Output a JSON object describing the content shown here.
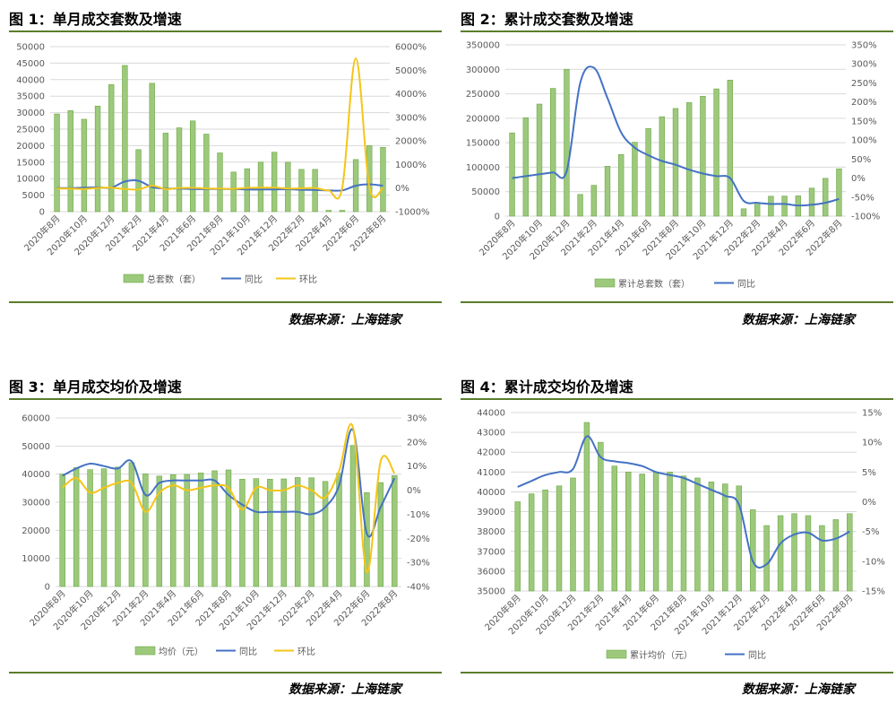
{
  "charts": [
    {
      "id": "c1",
      "title": "图 1：单月成交套数及增速",
      "source": "数据来源：上海链家",
      "chart_data": {
        "type": "bar",
        "categories": [
          "2020年8月",
          "2020年9月",
          "2020年10月",
          "2020年11月",
          "2020年12月",
          "2021年1月",
          "2021年2月",
          "2021年3月",
          "2021年4月",
          "2021年5月",
          "2021年6月",
          "2021年7月",
          "2021年8月",
          "2021年9月",
          "2021年10月",
          "2021年11月",
          "2021年12月",
          "2022年1月",
          "2022年2月",
          "2022年3月",
          "2022年4月",
          "2022年5月",
          "2022年6月",
          "2022年7月",
          "2022年8月"
        ],
        "x_tick_labels": [
          "2020年8月",
          "2020年10月",
          "2020年12月",
          "2021年2月",
          "2021年4月",
          "2021年6月",
          "2021年8月",
          "2021年10月",
          "2021年12月",
          "2022年2月",
          "2022年4月",
          "2022年6月",
          "2022年8月"
        ],
        "y_left": {
          "min": 0,
          "max": 50000,
          "ticks": [
            "0",
            "5000",
            "10000",
            "15000",
            "20000",
            "25000",
            "30000",
            "35000",
            "40000",
            "45000",
            "50000"
          ]
        },
        "y_right": {
          "min": -1000,
          "max": 6000,
          "ticks": [
            "-1000%",
            "0%",
            "1000%",
            "2000%",
            "3000%",
            "4000%",
            "5000%",
            "6000%"
          ]
        },
        "series": [
          {
            "name": "总套数（套）",
            "kind": "bar",
            "axis": "left",
            "color": "#9cc97b",
            "values": [
              29600,
              30600,
              28000,
              32000,
              38500,
              44300,
              18800,
              38900,
              23800,
              25400,
              27500,
              23500,
              17800,
              12000,
              13000,
              15000,
              18000,
              15000,
              12800,
              12800,
              400,
              400,
              15800,
              20000,
              19500
            ]
          },
          {
            "name": "同比",
            "kind": "line",
            "axis": "right",
            "color": "#4472c4",
            "values": [
              0,
              0,
              20,
              30,
              20,
              280,
              310,
              40,
              -20,
              -20,
              -40,
              -40,
              -40,
              -40,
              -60,
              -60,
              -60,
              -50,
              -70,
              -80,
              -100,
              -100,
              100,
              160,
              100
            ]
          },
          {
            "name": "环比",
            "kind": "line",
            "axis": "right",
            "color": "#f5c518",
            "values": [
              -20,
              -20,
              -40,
              10,
              15,
              -40,
              -55,
              100,
              -40,
              5,
              8,
              -15,
              -25,
              -35,
              8,
              15,
              20,
              -17,
              -10,
              0,
              -97,
              0,
              5500,
              30,
              -3
            ]
          }
        ]
      }
    },
    {
      "id": "c2",
      "title": "图 2：累计成交套数及增速",
      "source": "数据来源：上海链家",
      "chart_data": {
        "type": "bar",
        "categories": [
          "2020年8月",
          "2020年9月",
          "2020年10月",
          "2020年11月",
          "2020年12月",
          "2021年1月",
          "2021年2月",
          "2021年3月",
          "2021年4月",
          "2021年5月",
          "2021年6月",
          "2021年7月",
          "2021年8月",
          "2021年9月",
          "2021年10月",
          "2021年11月",
          "2021年12月",
          "2022年1月",
          "2022年2月",
          "2022年3月",
          "2022年4月",
          "2022年5月",
          "2022年6月",
          "2022年7月",
          "2022年8月"
        ],
        "x_tick_labels": [
          "2020年8月",
          "2020年10月",
          "2020年12月",
          "2021年2月",
          "2021年4月",
          "2021年6月",
          "2021年8月",
          "2021年10月",
          "2021年12月",
          "2022年2月",
          "2022年4月",
          "2022年6月",
          "2022年8月"
        ],
        "y_left": {
          "min": 0,
          "max": 350000,
          "ticks": [
            "0",
            "50000",
            "100000",
            "150000",
            "200000",
            "250000",
            "300000",
            "350000"
          ]
        },
        "y_right": {
          "min": -100,
          "max": 350,
          "ticks": [
            "-100%",
            "-50%",
            "0%",
            "50%",
            "100%",
            "150%",
            "200%",
            "250%",
            "300%",
            "350%"
          ]
        },
        "series": [
          {
            "name": "累计总套数（套）",
            "kind": "bar",
            "axis": "left",
            "color": "#9cc97b",
            "values": [
              170000,
              201000,
              229000,
              261000,
              300000,
              44300,
              63000,
              102000,
              126000,
              151000,
              179000,
              203000,
              220000,
              232000,
              245000,
              260000,
              278000,
              15000,
              27800,
              40600,
              41000,
              41400,
              57200,
              77200,
              96700
            ]
          },
          {
            "name": "同比",
            "kind": "line",
            "axis": "right",
            "color": "#4472c4",
            "values": [
              0,
              5,
              10,
              15,
              18,
              250,
              290,
              210,
              120,
              80,
              60,
              45,
              35,
              22,
              12,
              5,
              0,
              -60,
              -65,
              -68,
              -68,
              -72,
              -70,
              -65,
              -55
            ]
          }
        ]
      }
    },
    {
      "id": "c3",
      "title": "图 3：单月成交均价及增速",
      "source": "数据来源：上海链家",
      "chart_data": {
        "type": "bar",
        "categories": [
          "2020年8月",
          "2020年9月",
          "2020年10月",
          "2020年11月",
          "2020年12月",
          "2021年1月",
          "2021年2月",
          "2021年3月",
          "2021年4月",
          "2021年5月",
          "2021年6月",
          "2021年7月",
          "2021年8月",
          "2021年9月",
          "2021年10月",
          "2021年11月",
          "2021年12月",
          "2022年1月",
          "2022年2月",
          "2022年3月",
          "2022年4月",
          "2022年5月",
          "2022年6月",
          "2022年7月",
          "2022年8月"
        ],
        "x_tick_labels": [
          "2020年8月",
          "2020年10月",
          "2020年12月",
          "2021年2月",
          "2021年4月",
          "2021年6月",
          "2021年8月",
          "2021年10月",
          "2021年12月",
          "2022年2月",
          "2022年4月",
          "2022年6月",
          "2022年8月"
        ],
        "y_left": {
          "min": 0,
          "max": 60000,
          "ticks": [
            "0",
            "10000",
            "20000",
            "30000",
            "40000",
            "50000",
            "60000"
          ]
        },
        "y_right": {
          "min": -40,
          "max": 30,
          "ticks": [
            "-40%",
            "-30%",
            "-20%",
            "-10%",
            "0%",
            "10%",
            "20%",
            "30%"
          ]
        },
        "series": [
          {
            "name": "均价（元）",
            "kind": "bar",
            "axis": "left",
            "color": "#9cc97b",
            "values": [
              40000,
              42300,
              41600,
              41900,
              42500,
              44100,
              40100,
              39300,
              39800,
              39900,
              40400,
              41200,
              41500,
              38200,
              38400,
              38200,
              38300,
              38800,
              38700,
              37400,
              40300,
              50200,
              33400,
              37000,
              39500
            ]
          },
          {
            "name": "同比",
            "kind": "line",
            "axis": "right",
            "color": "#4472c4",
            "values": [
              6,
              9,
              11,
              10,
              9,
              12,
              -2,
              3,
              4,
              4,
              4,
              4,
              -2,
              -6,
              -9,
              -9,
              -9,
              -9,
              -10,
              -7,
              2,
              25,
              -18,
              -7,
              5
            ]
          },
          {
            "name": "环比",
            "kind": "line",
            "axis": "right",
            "color": "#f5c518",
            "values": [
              1,
              5,
              -1,
              1,
              3,
              3,
              -9,
              -1,
              2,
              0,
              1,
              2,
              1,
              -8,
              1,
              0,
              0,
              2,
              0,
              -3,
              8,
              26,
              -34,
              12,
              7
            ]
          }
        ]
      }
    },
    {
      "id": "c4",
      "title": "图 4：累计成交均价及增速",
      "source": "数据来源：上海链家",
      "chart_data": {
        "type": "bar",
        "categories": [
          "2020年8月",
          "2020年9月",
          "2020年10月",
          "2020年11月",
          "2020年12月",
          "2021年1月",
          "2021年2月",
          "2021年3月",
          "2021年4月",
          "2021年5月",
          "2021年6月",
          "2021年7月",
          "2021年8月",
          "2021年9月",
          "2021年10月",
          "2021年11月",
          "2021年12月",
          "2022年1月",
          "2022年2月",
          "2022年3月",
          "2022年4月",
          "2022年5月",
          "2022年6月",
          "2022年7月",
          "2022年8月"
        ],
        "x_tick_labels": [
          "2020年8月",
          "2020年10月",
          "2020年12月",
          "2021年2月",
          "2021年4月",
          "2021年6月",
          "2021年8月",
          "2021年10月",
          "2021年12月",
          "2022年2月",
          "2022年4月",
          "2022年6月",
          "2022年8月"
        ],
        "y_left": {
          "min": 35000,
          "max": 44000,
          "ticks": [
            "35000",
            "36000",
            "37000",
            "38000",
            "39000",
            "40000",
            "41000",
            "42000",
            "43000",
            "44000"
          ]
        },
        "y_right": {
          "min": -15,
          "max": 15,
          "ticks": [
            "-15%",
            "-10%",
            "-5%",
            "0%",
            "5%",
            "10%",
            "15%"
          ]
        },
        "series": [
          {
            "name": "累计均价（元）",
            "kind": "bar",
            "axis": "left",
            "color": "#9cc97b",
            "values": [
              39500,
              39900,
              40100,
              40300,
              40700,
              43500,
              42500,
              41300,
              41000,
              40900,
              41000,
              41000,
              40800,
              40700,
              40500,
              40400,
              40300,
              39100,
              38300,
              38800,
              38900,
              38800,
              38300,
              38600,
              38900
            ]
          },
          {
            "name": "同比",
            "kind": "line",
            "axis": "right",
            "color": "#4472c4",
            "values": [
              2.5,
              3.5,
              4.5,
              5,
              5.5,
              11,
              7.5,
              6.8,
              6.5,
              6,
              5,
              4.5,
              4,
              3,
              2,
              1,
              -0.5,
              -10,
              -10.5,
              -7,
              -5.5,
              -5.2,
              -6.5,
              -6.2,
              -5
            ]
          }
        ]
      }
    }
  ]
}
